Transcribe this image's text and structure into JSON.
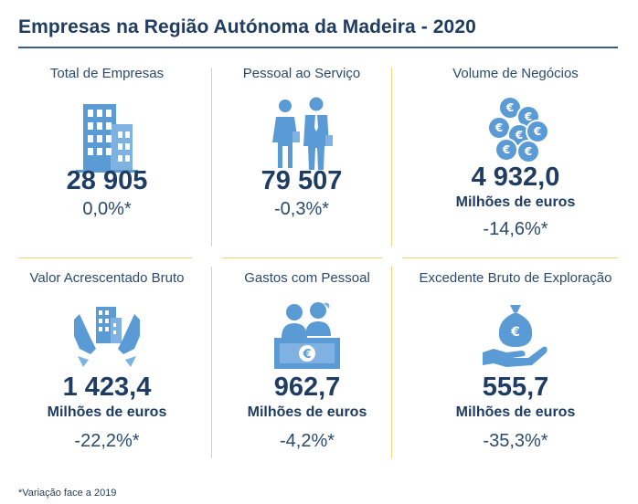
{
  "title": "Empresas na Região Autónoma da Madeira - 2020",
  "footnote": "*Variação face a 2019",
  "colors": {
    "accent": "#5b9bd5",
    "dark_blue": "#1f3d63",
    "divider": "#f2d37a"
  },
  "cards": [
    {
      "label": "Total de Empresas",
      "icon": "office-buildings-icon",
      "value": "28 905",
      "unit": "",
      "variation": "0,0%*"
    },
    {
      "label": "Pessoal ao Serviço",
      "icon": "staff-people-icon",
      "value": "79 507",
      "unit": "",
      "variation": "-0,3%*"
    },
    {
      "label": "Volume de Negócios",
      "icon": "euro-coins-icon",
      "value": "4 932,0",
      "unit": "Milhões de euros",
      "variation": "-14,6%*"
    },
    {
      "label": "Valor Acrescentado Bruto",
      "icon": "hands-building-icon",
      "value": "1 423,4",
      "unit": "Milhões de euros",
      "variation": "-22,2%*"
    },
    {
      "label": "Gastos com Pessoal",
      "icon": "staff-euro-desk-icon",
      "value": "962,7",
      "unit": "Milhões de euros",
      "variation": "-4,2%*"
    },
    {
      "label": "Excedente Bruto de Exploração",
      "icon": "money-bag-hand-icon",
      "value": "555,7",
      "unit": "Milhões de euros",
      "variation": "-35,3%*"
    }
  ]
}
